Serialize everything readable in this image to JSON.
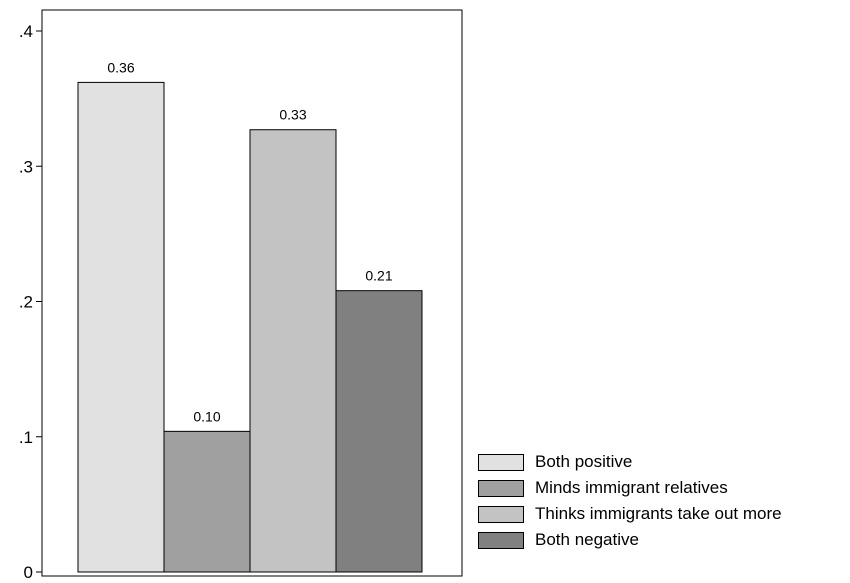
{
  "chart_data": {
    "type": "bar",
    "categories": [
      "Both positive",
      "Minds immigrant relatives",
      "Thinks immigrants take out more",
      "Both negative"
    ],
    "values": [
      0.36,
      0.1,
      0.33,
      0.21
    ],
    "bar_value_estimates": [
      0.362,
      0.104,
      0.327,
      0.208
    ],
    "data_labels": [
      "0.36",
      "0.10",
      "0.33",
      "0.21"
    ],
    "colors": [
      "#e1e1e1",
      "#a0a0a0",
      "#c3c3c3",
      "#808080"
    ],
    "title": "",
    "xlabel": "",
    "ylabel": "",
    "ylim": [
      0,
      0.4
    ],
    "yticks": [
      0,
      0.1,
      0.2,
      0.3,
      0.4
    ],
    "ytick_labels": [
      "0",
      ".1",
      ".2",
      ".3",
      ".4"
    ],
    "grid": false,
    "legend_position": "bottom-right"
  }
}
